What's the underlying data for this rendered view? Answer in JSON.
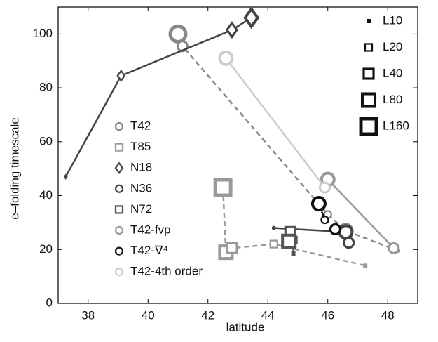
{
  "chart_data": {
    "type": "line",
    "x_label": "latitude",
    "y_label": "e–folding timescale",
    "xlim": [
      37,
      49
    ],
    "xticks": [
      38,
      40,
      42,
      44,
      46,
      48
    ],
    "ylim": [
      0,
      110
    ],
    "yticks": [
      0,
      20,
      40,
      60,
      80,
      100
    ],
    "size_legend": [
      "L10",
      "L20",
      "L40",
      "L80",
      "L160"
    ],
    "series": [
      {
        "name": "T42",
        "color": "#888888",
        "marker": "circle",
        "dash": true,
        "x": [
          41.0,
          41.15,
          46.0,
          46.6,
          48.35
        ],
        "values": [
          100,
          95.5,
          33,
          27,
          19.5
        ],
        "sizes": [
          "L160",
          "L40",
          "L20",
          "L80",
          "L10"
        ]
      },
      {
        "name": "T85",
        "color": "#999999",
        "marker": "square",
        "dash": true,
        "x": [
          42.5,
          42.6,
          42.8,
          44.2,
          47.25
        ],
        "values": [
          43,
          19,
          20.5,
          22,
          14
        ],
        "sizes": [
          "L160",
          "L80",
          "L40",
          "L20",
          "L10"
        ]
      },
      {
        "name": "N18",
        "color": "#444444",
        "marker": "diamond",
        "dash": false,
        "x": [
          37.25,
          39.1,
          42.8,
          43.45
        ],
        "values": [
          47,
          84.5,
          101.5,
          106
        ],
        "sizes": [
          "L10",
          "L20",
          "L40",
          "L80"
        ]
      },
      {
        "name": "N36",
        "color": "#444444",
        "marker": "circle",
        "dash": false,
        "x": [
          44.2,
          46.6,
          46.7
        ],
        "values": [
          28,
          26.5,
          22.5
        ],
        "sizes": [
          "L10",
          "L80",
          "L40"
        ]
      },
      {
        "name": "N72",
        "color": "#555555",
        "marker": "square",
        "dash": false,
        "x": [
          44.85,
          44.85,
          44.75,
          44.7
        ],
        "values": [
          18.5,
          23.5,
          26.5,
          23
        ],
        "sizes": [
          "L10",
          "L20",
          "L40",
          "L80"
        ]
      },
      {
        "name": "T42-fvp",
        "color": "#999999",
        "marker": "circle",
        "dash": false,
        "x": [
          46.0,
          48.2
        ],
        "values": [
          46,
          20.5
        ],
        "sizes": [
          "L80",
          "L40"
        ]
      },
      {
        "name": "T42-∇⁴",
        "color": "#111111",
        "marker": "circle",
        "dash": true,
        "x": [
          45.7,
          45.9,
          46.25
        ],
        "values": [
          37,
          31,
          27.5
        ],
        "sizes": [
          "L80",
          "L20",
          "L40"
        ]
      },
      {
        "name": "T42-4th order",
        "color": "#cccccc",
        "marker": "circle",
        "dash": false,
        "x": [
          42.6,
          45.9
        ],
        "values": [
          91,
          43
        ],
        "sizes": [
          "L80",
          "L40"
        ]
      }
    ]
  }
}
